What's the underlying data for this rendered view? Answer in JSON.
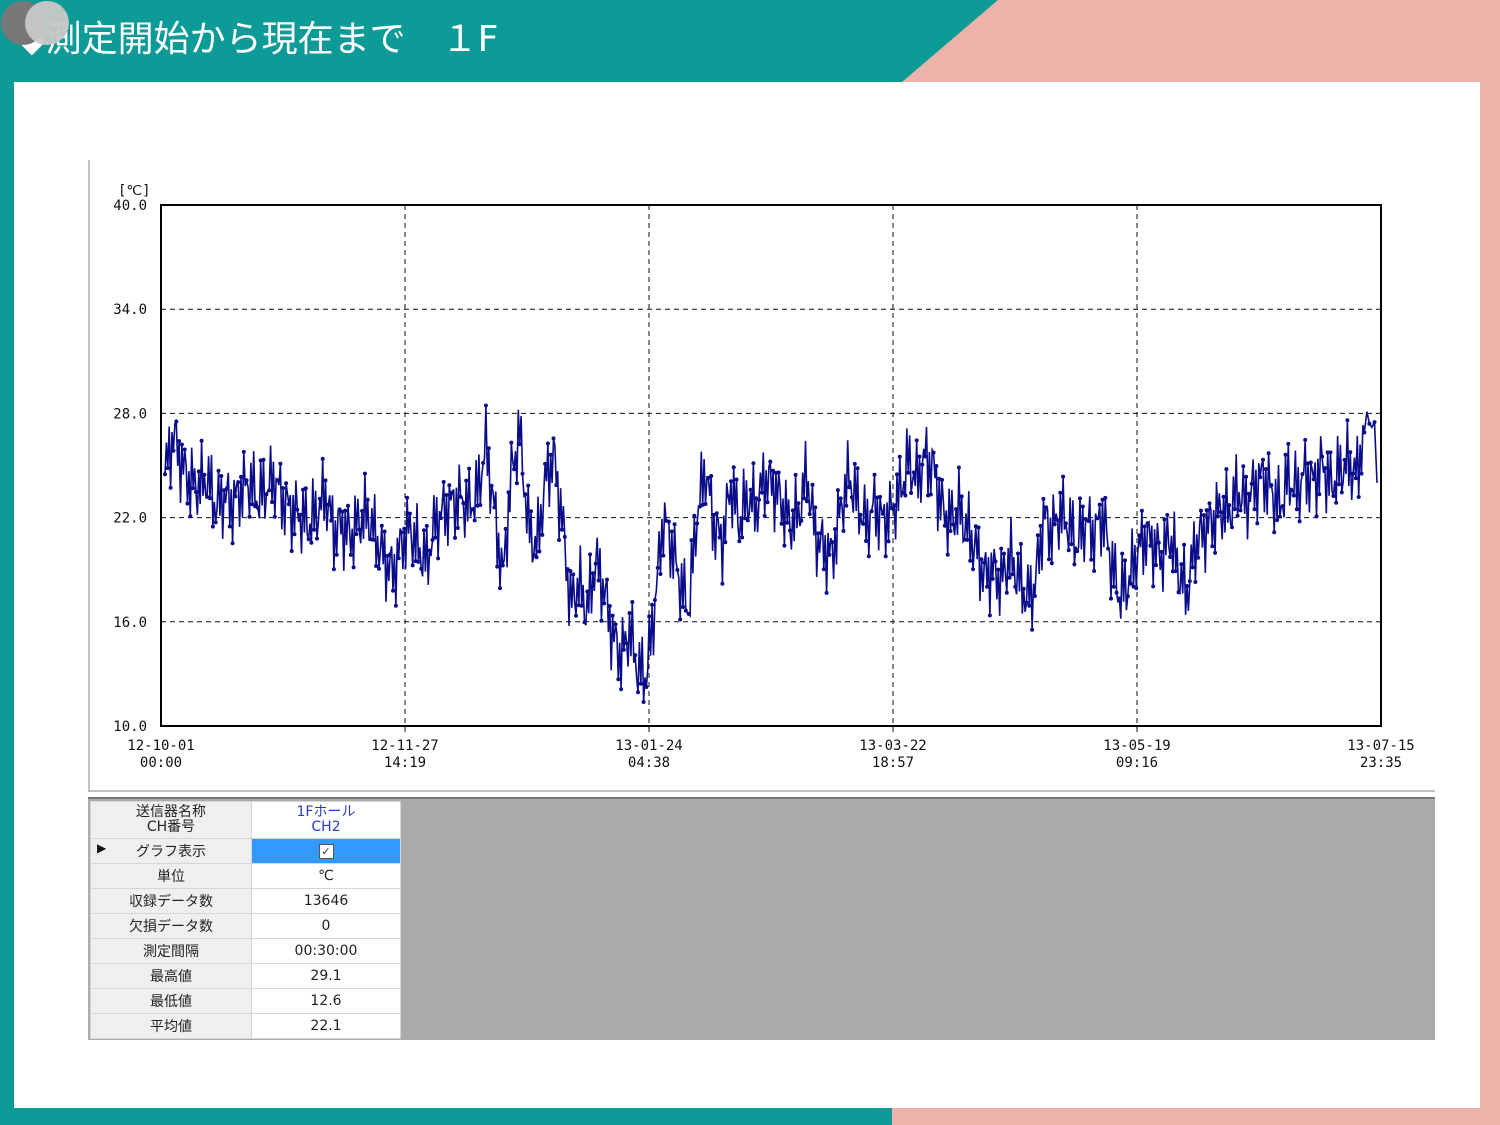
{
  "header": {
    "title": "◆測定開始から現在まで　１F",
    "colors": {
      "teal": "#0e9a97",
      "pink": "#ecb3ab"
    },
    "logo_icon": "two-circles-logo"
  },
  "chart_data": {
    "type": "line",
    "unit_label": "[℃]",
    "ylim": [
      10,
      40
    ],
    "yticks": [
      "40.0",
      "34.0",
      "28.0",
      "22.0",
      "16.0",
      "10.0"
    ],
    "xticks": [
      {
        "date": "12-10-01",
        "time": "00:00"
      },
      {
        "date": "12-11-27",
        "time": "14:19"
      },
      {
        "date": "13-01-24",
        "time": "04:38"
      },
      {
        "date": "13-03-22",
        "time": "18:57"
      },
      {
        "date": "13-05-19",
        "time": "09:16"
      },
      {
        "date": "13-07-15",
        "time": "23:35"
      }
    ],
    "grid": true,
    "series": [
      {
        "color": "#0b0c8a",
        "x": [
          0,
          2,
          4,
          6,
          8,
          10,
          12,
          14,
          16,
          18,
          20,
          22,
          24,
          26,
          28,
          30,
          32,
          34,
          36,
          38,
          40,
          42,
          44,
          46,
          48,
          50,
          52,
          54,
          56,
          58,
          60,
          62,
          64,
          66,
          68,
          70,
          72,
          74,
          76,
          78,
          80,
          82,
          84,
          86,
          88,
          90,
          92,
          94,
          96,
          98,
          100,
          102,
          104,
          106,
          108,
          110,
          112,
          114,
          116,
          118,
          120,
          122,
          124,
          126,
          128,
          130,
          132,
          134,
          136,
          138,
          140,
          142,
          144,
          146,
          148,
          150,
          152,
          154,
          156,
          158,
          160,
          162,
          164,
          166,
          168,
          170,
          172,
          174,
          176,
          178,
          180,
          182,
          184,
          186,
          188,
          190,
          192,
          194,
          196,
          198,
          200,
          202,
          204,
          206,
          208,
          210,
          212,
          214,
          216,
          218,
          220,
          222,
          224,
          226,
          228,
          230,
          232,
          234,
          236,
          238,
          240,
          242,
          244,
          246,
          248,
          250,
          252,
          254,
          256,
          258,
          260,
          262,
          264,
          266,
          268,
          270,
          272,
          274,
          276,
          278,
          280,
          282,
          284
        ],
        "values": [
          24.5,
          26.8,
          25.0,
          24.0,
          23.8,
          24.3,
          22.6,
          23.2,
          22.8,
          23.6,
          24.0,
          23.1,
          23.7,
          24.2,
          23.0,
          22.4,
          22.1,
          21.6,
          22.3,
          23.4,
          21.2,
          21.5,
          20.9,
          21.8,
          22.2,
          20.8,
          19.6,
          18.8,
          20.5,
          21.4,
          20.2,
          19.4,
          21.7,
          22.4,
          22.8,
          23.1,
          22.6,
          23.4,
          26.2,
          22.4,
          18.5,
          24.5,
          26.9,
          21.5,
          20.2,
          24.0,
          25.6,
          22.0,
          17.0,
          18.2,
          16.6,
          19.5,
          17.8,
          15.2,
          14.0,
          15.5,
          13.2,
          12.9,
          17.0,
          22.0,
          20.4,
          18.2,
          16.8,
          22.2,
          24.8,
          21.5,
          20.6,
          23.9,
          21.7,
          23.2,
          22.5,
          24.3,
          23.8,
          22.9,
          21.6,
          22.2,
          24.5,
          21.0,
          20.2,
          19.8,
          22.5,
          24.4,
          22.8,
          21.6,
          22.7,
          21.8,
          22.3,
          23.4,
          25.3,
          24.1,
          25.5,
          24.8,
          22.5,
          21.8,
          22.5,
          21.3,
          20.2,
          18.6,
          19.0,
          18.3,
          19.8,
          18.6,
          17.4,
          18.0,
          22.0,
          21.2,
          22.3,
          21.5,
          20.5,
          21.8,
          21.0,
          22.2,
          19.5,
          17.5,
          18.2,
          19.8,
          20.9,
          20.5,
          19.7,
          21.0,
          18.9,
          17.6,
          20.5,
          21.2,
          21.8,
          22.5,
          22.3,
          23.6,
          22.8,
          23.8,
          24.4,
          23.5,
          22.6,
          24.3,
          23.5,
          24.6,
          24.0,
          25.1,
          23.8,
          24.6,
          25.2,
          24.4,
          26.9
        ],
        "dense_end": [
          28.1,
          27.4,
          27.2,
          27.5,
          24.0
        ]
      }
    ]
  },
  "panel": {
    "rows": [
      {
        "label": "送信器名称\nCH番号",
        "value": "1Fホール\nCH2"
      },
      {
        "label": "グラフ表示",
        "value": "checked"
      },
      {
        "label": "単位",
        "value": "℃"
      },
      {
        "label": "収録データ数",
        "value": "13646"
      },
      {
        "label": "欠損データ数",
        "value": "0"
      },
      {
        "label": "測定間隔",
        "value": "00:30:00"
      },
      {
        "label": "最高値",
        "value": "29.1"
      },
      {
        "label": "最低値",
        "value": "12.6"
      },
      {
        "label": "平均値",
        "value": "22.1"
      }
    ],
    "check_glyph": "✓"
  }
}
